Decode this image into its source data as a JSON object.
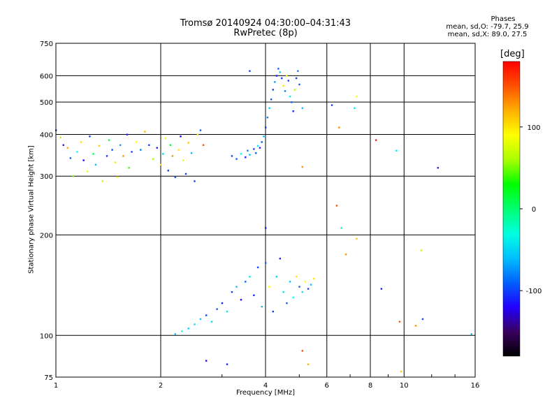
{
  "header": {
    "title_line1": "Tromsø 20140924 04:30:00–04:31:43",
    "title_line2": "RwPretec (8p)"
  },
  "phases": {
    "heading": "Phases",
    "line1": "mean, sd,O: -79.7, 25.9",
    "line2": "mean, sd,X:  89.0, 27.5"
  },
  "colorbar": {
    "unit": "[deg]",
    "ticks": [
      {
        "label": "100",
        "value": 100
      },
      {
        "label": "0",
        "value": 0
      },
      {
        "label": "-100",
        "value": -100
      }
    ],
    "range": [
      -180,
      180
    ],
    "palette": [
      "#000000",
      "#3a0060",
      "#2200ff",
      "#0060ff",
      "#00c0ff",
      "#00ffe0",
      "#00ff70",
      "#00ff00",
      "#aaff00",
      "#ffff00",
      "#ffb000",
      "#ff5000",
      "#ff0000"
    ]
  },
  "chart_data": {
    "type": "scatter",
    "title": "Tromsø 20140924 04:30:00–04:31:43",
    "subtitle": "RwPretec (8p)",
    "xlabel": "Frequency [MHz]",
    "ylabel": "Stationary phase Virtual Height [km]",
    "xscale": "log",
    "yscale": "log",
    "xlim": [
      1,
      16
    ],
    "ylim": [
      75,
      750
    ],
    "xticks": [
      1,
      2,
      4,
      6,
      8,
      10,
      16
    ],
    "xtick_labels": [
      "1",
      "2",
      "4",
      "6",
      "8",
      "10",
      "16"
    ],
    "yticks": [
      75,
      100,
      200,
      300,
      400,
      500,
      600,
      750
    ],
    "ytick_labels": [
      "75",
      "100",
      "200",
      "300",
      "400",
      "500",
      "600",
      "750"
    ],
    "grid": true,
    "color_scale": {
      "label": "[deg]",
      "min": -180,
      "max": 180
    },
    "points": [
      [
        1.0,
        412,
        -100
      ],
      [
        1.03,
        392,
        60
      ],
      [
        1.05,
        372,
        -110
      ],
      [
        1.08,
        365,
        120
      ],
      [
        1.1,
        340,
        -90
      ],
      [
        1.12,
        300,
        50
      ],
      [
        1.15,
        355,
        -30
      ],
      [
        1.18,
        380,
        100
      ],
      [
        1.2,
        335,
        -120
      ],
      [
        1.23,
        310,
        80
      ],
      [
        1.25,
        395,
        -100
      ],
      [
        1.28,
        350,
        10
      ],
      [
        1.3,
        325,
        -60
      ],
      [
        1.33,
        370,
        110
      ],
      [
        1.36,
        290,
        70
      ],
      [
        1.4,
        345,
        -105
      ],
      [
        1.42,
        385,
        20
      ],
      [
        1.45,
        360,
        -95
      ],
      [
        1.48,
        330,
        100
      ],
      [
        1.5,
        298,
        90
      ],
      [
        1.53,
        372,
        -70
      ],
      [
        1.56,
        345,
        130
      ],
      [
        1.6,
        400,
        -110
      ],
      [
        1.62,
        318,
        40
      ],
      [
        1.65,
        355,
        -100
      ],
      [
        1.7,
        380,
        90
      ],
      [
        1.75,
        360,
        -80
      ],
      [
        1.8,
        408,
        120
      ],
      [
        1.85,
        372,
        -100
      ],
      [
        1.9,
        338,
        60
      ],
      [
        1.95,
        365,
        -110
      ],
      [
        2.0,
        325,
        100
      ],
      [
        2.03,
        350,
        -50
      ],
      [
        2.06,
        390,
        90
      ],
      [
        2.1,
        312,
        -100
      ],
      [
        2.13,
        372,
        20
      ],
      [
        2.16,
        345,
        130
      ],
      [
        2.2,
        298,
        -90
      ],
      [
        2.25,
        360,
        100
      ],
      [
        2.28,
        395,
        -120
      ],
      [
        2.32,
        335,
        80
      ],
      [
        2.36,
        305,
        -100
      ],
      [
        2.4,
        378,
        110
      ],
      [
        2.45,
        352,
        -60
      ],
      [
        2.5,
        290,
        -100
      ],
      [
        2.55,
        400,
        100
      ],
      [
        2.6,
        412,
        -90
      ],
      [
        2.65,
        372,
        150
      ],
      [
        3.2,
        345,
        -100
      ],
      [
        3.3,
        338,
        -90
      ],
      [
        3.4,
        350,
        -30
      ],
      [
        3.5,
        342,
        -110
      ],
      [
        3.55,
        358,
        -80
      ],
      [
        3.6,
        348,
        -60
      ],
      [
        3.7,
        362,
        -100
      ],
      [
        3.75,
        352,
        -90
      ],
      [
        3.8,
        370,
        -40
      ],
      [
        3.85,
        365,
        -110
      ],
      [
        3.9,
        380,
        -90
      ],
      [
        3.95,
        395,
        -60
      ],
      [
        4.0,
        420,
        -100
      ],
      [
        4.05,
        450,
        -80
      ],
      [
        4.1,
        480,
        -50
      ],
      [
        4.15,
        510,
        -90
      ],
      [
        4.2,
        545,
        -100
      ],
      [
        4.25,
        575,
        -70
      ],
      [
        4.3,
        600,
        -110
      ],
      [
        4.35,
        630,
        -90
      ],
      [
        4.4,
        615,
        -60
      ],
      [
        4.45,
        590,
        -100
      ],
      [
        4.5,
        560,
        100
      ],
      [
        4.55,
        540,
        -80
      ],
      [
        4.6,
        600,
        80
      ],
      [
        4.65,
        580,
        -100
      ],
      [
        4.7,
        520,
        -40
      ],
      [
        4.75,
        500,
        -90
      ],
      [
        4.8,
        470,
        -110
      ],
      [
        4.85,
        545,
        60
      ],
      [
        4.9,
        590,
        -100
      ],
      [
        4.95,
        620,
        -80
      ],
      [
        5.0,
        565,
        -90
      ],
      [
        5.1,
        480,
        -60
      ],
      [
        2.2,
        101,
        -60
      ],
      [
        2.3,
        103,
        -30
      ],
      [
        2.4,
        105,
        -50
      ],
      [
        2.5,
        108,
        -40
      ],
      [
        2.6,
        112,
        -60
      ],
      [
        2.7,
        115,
        -100
      ],
      [
        2.8,
        110,
        -50
      ],
      [
        2.9,
        120,
        -90
      ],
      [
        3.0,
        125,
        -110
      ],
      [
        3.1,
        118,
        -40
      ],
      [
        3.2,
        135,
        -100
      ],
      [
        3.3,
        140,
        -60
      ],
      [
        3.4,
        128,
        -120
      ],
      [
        3.5,
        145,
        -90
      ],
      [
        3.6,
        150,
        -40
      ],
      [
        3.7,
        132,
        -110
      ],
      [
        3.8,
        160,
        -100
      ],
      [
        3.9,
        122,
        -60
      ],
      [
        4.0,
        165,
        -90
      ],
      [
        4.1,
        140,
        90
      ],
      [
        4.2,
        118,
        -100
      ],
      [
        4.3,
        150,
        -50
      ],
      [
        4.4,
        170,
        -110
      ],
      [
        4.5,
        135,
        -40
      ],
      [
        4.6,
        125,
        -90
      ],
      [
        4.7,
        145,
        -60
      ],
      [
        4.8,
        130,
        -30
      ],
      [
        4.9,
        150,
        100
      ],
      [
        5.0,
        140,
        -90
      ],
      [
        5.1,
        135,
        -40
      ],
      [
        5.2,
        145,
        90
      ],
      [
        5.3,
        138,
        -100
      ],
      [
        5.4,
        142,
        -60
      ],
      [
        5.5,
        148,
        100
      ],
      [
        6.2,
        490,
        -100
      ],
      [
        6.4,
        245,
        150
      ],
      [
        6.5,
        420,
        130
      ],
      [
        6.6,
        210,
        -20
      ],
      [
        6.8,
        175,
        130
      ],
      [
        7.2,
        480,
        -40
      ],
      [
        7.3,
        195,
        110
      ],
      [
        7.3,
        520,
        90
      ],
      [
        8.3,
        385,
        170
      ],
      [
        8.6,
        138,
        -110
      ],
      [
        9.5,
        358,
        -40
      ],
      [
        9.7,
        110,
        150
      ],
      [
        9.8,
        78,
        110
      ],
      [
        11.3,
        112,
        -100
      ],
      [
        12.5,
        318,
        -110
      ],
      [
        15.6,
        101,
        -60
      ],
      [
        3.6,
        620,
        -100
      ],
      [
        4.0,
        210,
        -110
      ],
      [
        2.7,
        84,
        -120
      ],
      [
        3.1,
        82,
        -110
      ],
      [
        5.1,
        90,
        150
      ],
      [
        5.3,
        82,
        120
      ],
      [
        5.1,
        320,
        130
      ],
      [
        11.2,
        180,
        70
      ],
      [
        10.8,
        107,
        130
      ]
    ]
  }
}
